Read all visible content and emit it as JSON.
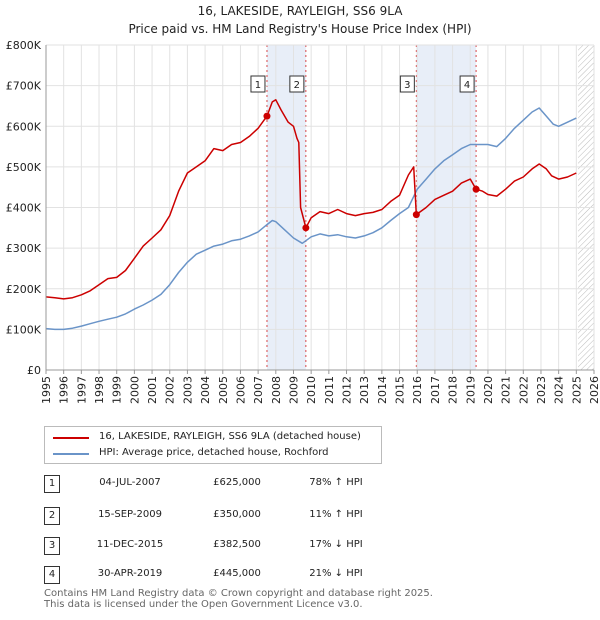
{
  "title_line1": "16, LAKESIDE, RAYLEIGH, SS6 9LA",
  "title_line2": "Price paid vs. HM Land Registry's House Price Index (HPI)",
  "colors": {
    "price": "#cc0000",
    "hpi": "#6a94c8",
    "shade": "#e8eef8",
    "marker_box": "#333333"
  },
  "chart_data": {
    "type": "line",
    "xlim": [
      1995,
      2026
    ],
    "ylim": [
      0,
      800000
    ],
    "x_ticks": [
      "1995",
      "1996",
      "1997",
      "1998",
      "1999",
      "2000",
      "2001",
      "2002",
      "2003",
      "2004",
      "2005",
      "2006",
      "2007",
      "2008",
      "2009",
      "2010",
      "2011",
      "2012",
      "2013",
      "2014",
      "2015",
      "2016",
      "2017",
      "2018",
      "2019",
      "2020",
      "2021",
      "2022",
      "2023",
      "2024",
      "2025",
      "2026"
    ],
    "y_ticks": [
      {
        "value": 0,
        "label": "£0"
      },
      {
        "value": 100000,
        "label": "£100K"
      },
      {
        "value": 200000,
        "label": "£200K"
      },
      {
        "value": 300000,
        "label": "£300K"
      },
      {
        "value": 400000,
        "label": "£400K"
      },
      {
        "value": 500000,
        "label": "£500K"
      },
      {
        "value": 600000,
        "label": "£600K"
      },
      {
        "value": 700000,
        "label": "£700K"
      },
      {
        "value": 800000,
        "label": "£800K"
      }
    ],
    "shaded_ranges": [
      [
        2007.5,
        2009.7
      ],
      [
        2015.95,
        2019.33
      ]
    ],
    "hatch_from": 2025.1,
    "series": [
      {
        "name": "16, LAKESIDE, RAYLEIGH, SS6 9LA (detached house)",
        "points": [
          [
            1995,
            180000
          ],
          [
            1995.5,
            178000
          ],
          [
            1996,
            175000
          ],
          [
            1996.5,
            178000
          ],
          [
            1997,
            185000
          ],
          [
            1997.5,
            195000
          ],
          [
            1998,
            210000
          ],
          [
            1998.5,
            225000
          ],
          [
            1999,
            228000
          ],
          [
            1999.5,
            245000
          ],
          [
            2000,
            275000
          ],
          [
            2000.5,
            305000
          ],
          [
            2001,
            325000
          ],
          [
            2001.5,
            345000
          ],
          [
            2002,
            380000
          ],
          [
            2002.5,
            440000
          ],
          [
            2003,
            485000
          ],
          [
            2003.5,
            500000
          ],
          [
            2004,
            515000
          ],
          [
            2004.5,
            545000
          ],
          [
            2005,
            540000
          ],
          [
            2005.5,
            555000
          ],
          [
            2006,
            560000
          ],
          [
            2006.5,
            575000
          ],
          [
            2007,
            595000
          ],
          [
            2007.5,
            625000
          ],
          [
            2007.8,
            660000
          ],
          [
            2008,
            665000
          ],
          [
            2008.3,
            640000
          ],
          [
            2008.7,
            610000
          ],
          [
            2009,
            600000
          ],
          [
            2009.2,
            570000
          ],
          [
            2009.3,
            560000
          ],
          [
            2009.4,
            400000
          ],
          [
            2009.7,
            350000
          ],
          [
            2010,
            375000
          ],
          [
            2010.5,
            390000
          ],
          [
            2011,
            385000
          ],
          [
            2011.5,
            395000
          ],
          [
            2012,
            385000
          ],
          [
            2012.5,
            380000
          ],
          [
            2013,
            385000
          ],
          [
            2013.5,
            388000
          ],
          [
            2014,
            395000
          ],
          [
            2014.5,
            415000
          ],
          [
            2015,
            430000
          ],
          [
            2015.5,
            480000
          ],
          [
            2015.8,
            500000
          ],
          [
            2015.9,
            420000
          ],
          [
            2015.95,
            382500
          ],
          [
            2016.5,
            400000
          ],
          [
            2017,
            420000
          ],
          [
            2017.5,
            430000
          ],
          [
            2018,
            440000
          ],
          [
            2018.5,
            460000
          ],
          [
            2019,
            470000
          ],
          [
            2019.33,
            445000
          ],
          [
            2019.7,
            440000
          ],
          [
            2020,
            432000
          ],
          [
            2020.5,
            428000
          ],
          [
            2021,
            445000
          ],
          [
            2021.5,
            465000
          ],
          [
            2022,
            475000
          ],
          [
            2022.5,
            495000
          ],
          [
            2022.9,
            507000
          ],
          [
            2023.3,
            495000
          ],
          [
            2023.6,
            478000
          ],
          [
            2024,
            470000
          ],
          [
            2024.5,
            475000
          ],
          [
            2025,
            485000
          ]
        ]
      },
      {
        "name": "HPI: Average price, detached house, Rochford",
        "points": [
          [
            1995,
            102000
          ],
          [
            1995.5,
            100000
          ],
          [
            1996,
            100000
          ],
          [
            1996.5,
            103000
          ],
          [
            1997,
            108000
          ],
          [
            1997.5,
            114000
          ],
          [
            1998,
            120000
          ],
          [
            1998.5,
            125000
          ],
          [
            1999,
            130000
          ],
          [
            1999.5,
            138000
          ],
          [
            2000,
            150000
          ],
          [
            2000.5,
            160000
          ],
          [
            2001,
            172000
          ],
          [
            2001.5,
            186000
          ],
          [
            2002,
            210000
          ],
          [
            2002.5,
            240000
          ],
          [
            2003,
            265000
          ],
          [
            2003.5,
            285000
          ],
          [
            2004,
            295000
          ],
          [
            2004.5,
            305000
          ],
          [
            2005,
            310000
          ],
          [
            2005.5,
            318000
          ],
          [
            2006,
            322000
          ],
          [
            2006.5,
            330000
          ],
          [
            2007,
            340000
          ],
          [
            2007.5,
            358000
          ],
          [
            2007.8,
            368000
          ],
          [
            2008,
            365000
          ],
          [
            2008.5,
            345000
          ],
          [
            2009,
            325000
          ],
          [
            2009.5,
            312000
          ],
          [
            2010,
            328000
          ],
          [
            2010.5,
            335000
          ],
          [
            2011,
            330000
          ],
          [
            2011.5,
            333000
          ],
          [
            2012,
            328000
          ],
          [
            2012.5,
            325000
          ],
          [
            2013,
            330000
          ],
          [
            2013.5,
            338000
          ],
          [
            2014,
            350000
          ],
          [
            2014.5,
            368000
          ],
          [
            2015,
            385000
          ],
          [
            2015.5,
            400000
          ],
          [
            2016,
            445000
          ],
          [
            2016.5,
            470000
          ],
          [
            2017,
            495000
          ],
          [
            2017.5,
            515000
          ],
          [
            2018,
            530000
          ],
          [
            2018.5,
            545000
          ],
          [
            2019,
            555000
          ],
          [
            2019.5,
            555000
          ],
          [
            2020,
            555000
          ],
          [
            2020.5,
            550000
          ],
          [
            2021,
            570000
          ],
          [
            2021.5,
            595000
          ],
          [
            2022,
            615000
          ],
          [
            2022.5,
            635000
          ],
          [
            2022.9,
            645000
          ],
          [
            2023.3,
            625000
          ],
          [
            2023.7,
            605000
          ],
          [
            2024,
            600000
          ],
          [
            2024.5,
            610000
          ],
          [
            2025,
            620000
          ]
        ]
      }
    ],
    "sales": [
      {
        "label": "1",
        "x": 2007.5,
        "value": 625000
      },
      {
        "label": "2",
        "x": 2009.7,
        "value": 350000
      },
      {
        "label": "3",
        "x": 2015.95,
        "value": 382500
      },
      {
        "label": "4",
        "x": 2019.33,
        "value": 445000
      }
    ]
  },
  "transactions": [
    {
      "num": "1",
      "date": "04-JUL-2007",
      "price": "£625,000",
      "hpi": "78% ↑ HPI"
    },
    {
      "num": "2",
      "date": "15-SEP-2009",
      "price": "£350,000",
      "hpi": "11% ↑ HPI"
    },
    {
      "num": "3",
      "date": "11-DEC-2015",
      "price": "£382,500",
      "hpi": "17% ↓ HPI"
    },
    {
      "num": "4",
      "date": "30-APR-2019",
      "price": "£445,000",
      "hpi": "21% ↓ HPI"
    }
  ],
  "footer_line1": "Contains HM Land Registry data © Crown copyright and database right 2025.",
  "footer_line2": "This data is licensed under the Open Government Licence v3.0."
}
